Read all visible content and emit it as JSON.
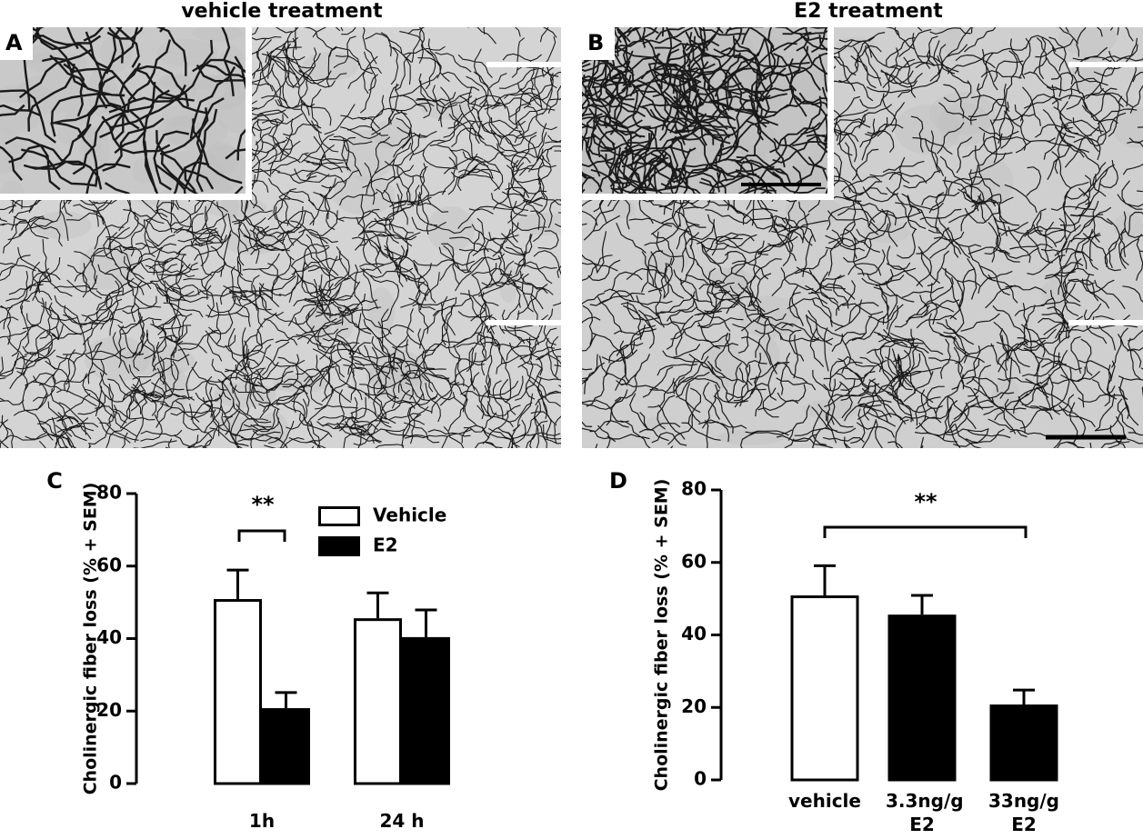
{
  "panels": [
    {
      "label": "A",
      "title": "vehicle treatment"
    },
    {
      "label": "B",
      "title": "E2 treatment"
    }
  ],
  "chart_data": [
    {
      "type": "bar",
      "panel_label": "C",
      "ylabel": "Cholinergic fiber loss (% + SEM)",
      "categories": [
        "1h",
        "24 h"
      ],
      "series": [
        {
          "name": "Vehicle",
          "color": "#ffffff",
          "values": [
            50.9,
            45.6
          ],
          "errors": [
            8.0,
            7.0
          ]
        },
        {
          "name": "E2",
          "color": "#000000",
          "values": [
            20.8,
            40.4
          ],
          "errors": [
            4.3,
            7.5
          ]
        }
      ],
      "ylim": [
        0,
        80
      ],
      "yticks": [
        0,
        20,
        40,
        60,
        80
      ],
      "annotation": "**"
    },
    {
      "type": "bar",
      "panel_label": "D",
      "ylabel": "Cholinergic fiber loss (% + SEM)",
      "categories": [
        "vehicle",
        "3.3ng/g E2",
        "33ng/g E2"
      ],
      "values": [
        50.9,
        45.6,
        20.8
      ],
      "errors": [
        8.2,
        5.3,
        4.0
      ],
      "colors": [
        "#ffffff",
        "#000000",
        "#000000"
      ],
      "ylim": [
        0,
        80
      ],
      "yticks": [
        0,
        20,
        40,
        60,
        80
      ],
      "annotation": "**"
    }
  ]
}
